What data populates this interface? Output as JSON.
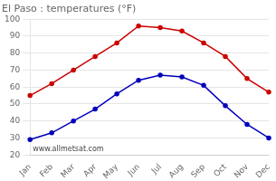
{
  "chart_data": {
    "type": "line",
    "title": "El Paso : temperatures (°F)",
    "categories": [
      "Jan",
      "Feb",
      "Mar",
      "Apr",
      "May",
      "Jun",
      "Jul",
      "Aug",
      "Sep",
      "Oct",
      "Nov",
      "Dec"
    ],
    "series": [
      {
        "color": "#cc0000",
        "values": [
          55,
          62,
          70,
          78,
          86,
          96,
          95,
          93,
          86,
          78,
          65,
          57
        ]
      },
      {
        "color": "#0000bb",
        "values": [
          29,
          33,
          40,
          47,
          56,
          64,
          67,
          66,
          61,
          49,
          38,
          30
        ]
      }
    ],
    "ylim": [
      20,
      100
    ],
    "yticks": [
      20,
      30,
      40,
      50,
      60,
      70,
      80,
      90,
      100
    ],
    "grid": true,
    "marker": "circle",
    "annotations": [
      "www.allmetsat.com"
    ]
  }
}
